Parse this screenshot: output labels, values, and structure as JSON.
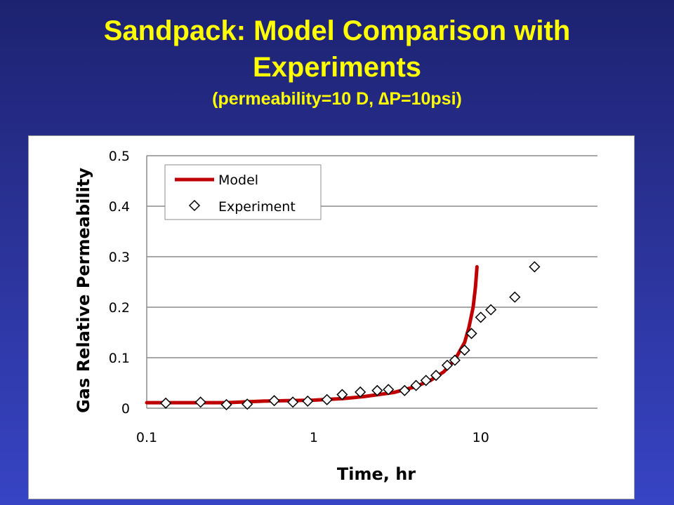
{
  "slide": {
    "title_line1": "Sandpack: Model Comparison with",
    "title_line2": "Experiments",
    "subtitle": "(permeability=10 D, ∆P=10psi)"
  },
  "chart_data": {
    "type": "scatter",
    "x_scale": "log",
    "xlim": [
      0.1,
      50
    ],
    "ylim": [
      0,
      0.5
    ],
    "xlabel": "Time, hr",
    "ylabel": "Gas Relative Permeability",
    "x_ticks": [
      "0.1",
      "1",
      "10"
    ],
    "y_ticks": [
      "0",
      "0.1",
      "0.2",
      "0.3",
      "0.4",
      "0.5"
    ],
    "grid": "horizontal",
    "legend_position": "top-left",
    "series": [
      {
        "name": "Model",
        "kind": "line",
        "color": "#c00000",
        "x": [
          0.1,
          0.3,
          0.5,
          1.0,
          1.5,
          2.0,
          3.0,
          4.0,
          5.0,
          6.0,
          7.0,
          8.0,
          8.5,
          9.0,
          9.3,
          9.5
        ],
        "y": [
          0.011,
          0.011,
          0.014,
          0.016,
          0.019,
          0.023,
          0.031,
          0.042,
          0.055,
          0.072,
          0.096,
          0.13,
          0.16,
          0.2,
          0.24,
          0.28
        ]
      },
      {
        "name": "Experiment",
        "kind": "marker",
        "marker": "diamond",
        "color": "#000000",
        "x": [
          0.13,
          0.21,
          0.3,
          0.4,
          0.58,
          0.75,
          0.92,
          1.2,
          1.48,
          1.9,
          2.4,
          2.8,
          3.5,
          4.1,
          4.7,
          5.4,
          6.3,
          7.0,
          8.0,
          8.8,
          10.0,
          11.5,
          16.0,
          21.0
        ],
        "y": [
          0.01,
          0.012,
          0.007,
          0.008,
          0.015,
          0.012,
          0.014,
          0.017,
          0.027,
          0.032,
          0.035,
          0.037,
          0.035,
          0.045,
          0.055,
          0.065,
          0.085,
          0.095,
          0.115,
          0.148,
          0.18,
          0.195,
          0.22,
          0.28
        ]
      }
    ]
  }
}
